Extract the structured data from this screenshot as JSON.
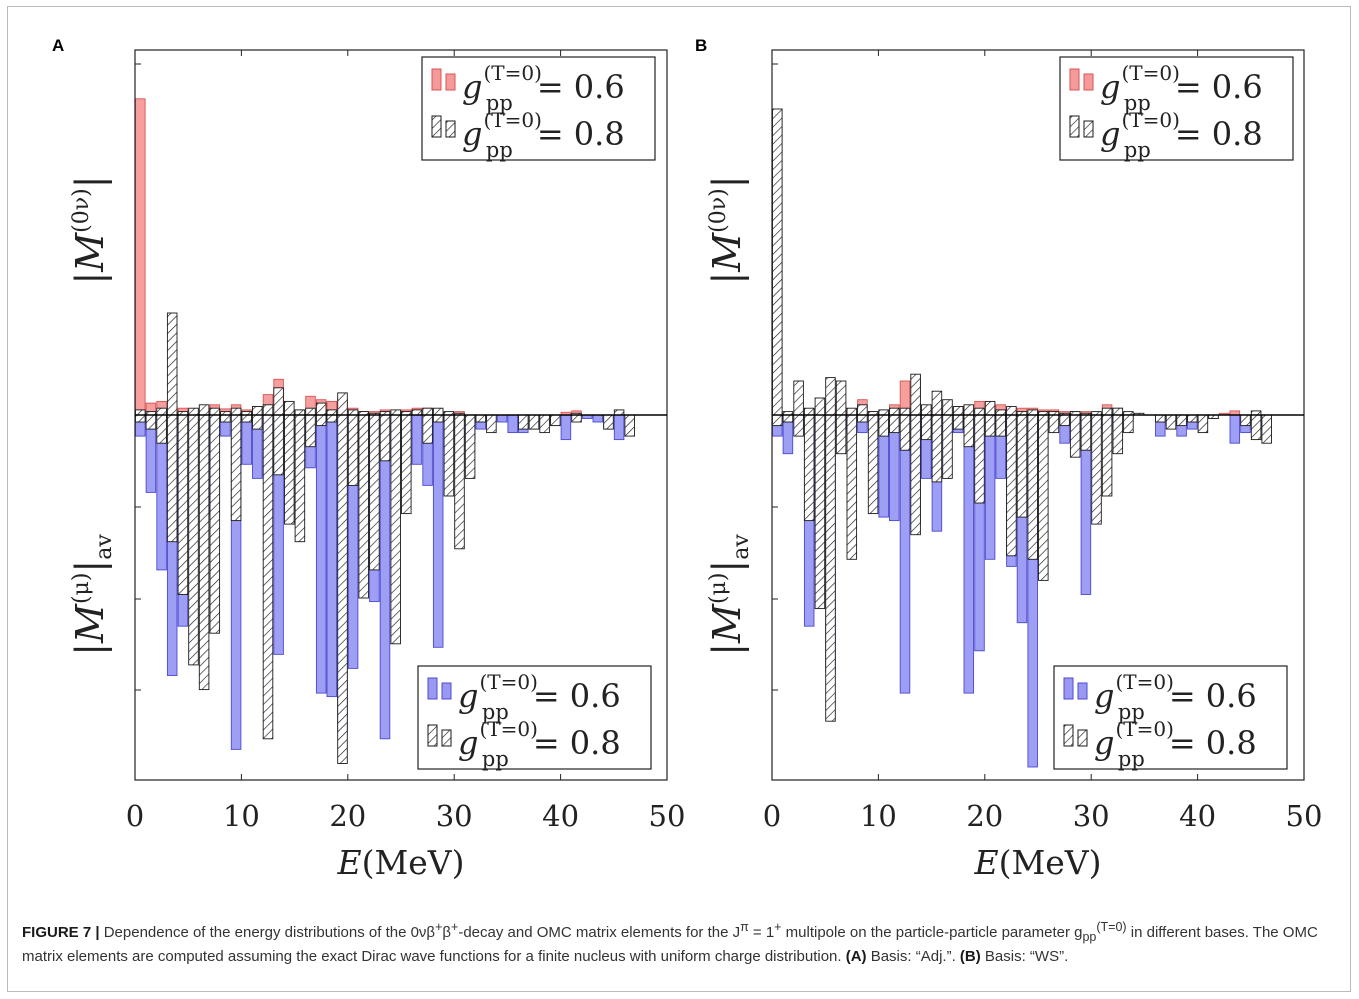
{
  "colors": {
    "red_fill": "#f49a9a",
    "red_edge": "#d95454",
    "blue_fill": "#9999f4",
    "blue_edge": "#4b4bd1",
    "hatch_edge": "#1a1a1a"
  },
  "axis": {
    "xlabel": "E(MeV)",
    "xticks": [
      "0",
      "10",
      "20",
      "30",
      "40",
      "50"
    ],
    "xlim": [
      0,
      50
    ],
    "ylabel_top": "|M(0ν)|",
    "ylabel_bottom": "|M(μ)|av"
  },
  "legend_top": [
    {
      "sym": "g",
      "sup": "(T=0)",
      "sub": "pp",
      "value": "= 0.6",
      "style": "red"
    },
    {
      "sym": "g",
      "sup": "(T=0)",
      "sub": "pp",
      "value": "= 0.8",
      "style": "hatch"
    }
  ],
  "legend_bottom": [
    {
      "sym": "g",
      "sup": "(T=0)",
      "sub": "pp",
      "value": "= 0.6",
      "style": "blue"
    },
    {
      "sym": "g",
      "sup": "(T=0)",
      "sub": "pp",
      "value": "= 0.8",
      "style": "hatch"
    }
  ],
  "chart_data": [
    {
      "type": "bar",
      "panel": "A",
      "xlabel": "E(MeV)",
      "bin_width_mev": 1.0,
      "xlim": [
        0,
        50
      ],
      "top": {
        "ylabel": "|M(0ν)|",
        "ylim": [
          0,
          1.0
        ],
        "series": [
          {
            "name": "g_pp^(T=0) = 0.6",
            "x": [
              0.5,
              1.5,
              2.5,
              3.5,
              4.5,
              5.5,
              6.5,
              7.5,
              8.5,
              9.5,
              10.5,
              11.5,
              12.5,
              13.5,
              14.5,
              15.5,
              16.5,
              17.5,
              18.5,
              19.5,
              20.5,
              21.5,
              22.5,
              23.5,
              24.5,
              25.5,
              26.5,
              27.5,
              28.5,
              29.5,
              30.5,
              31.5,
              32.5,
              33.5,
              34.5,
              35.5,
              36.5,
              37.5,
              38.5,
              39.5,
              40.5,
              41.5,
              42.5,
              43.5,
              44.5,
              45.5,
              46.5
            ],
            "values": [
              0.93,
              0.035,
              0.04,
              0.025,
              0.02,
              0.015,
              0.025,
              0.03,
              0.018,
              0.03,
              0.015,
              0.025,
              0.06,
              0.105,
              0.02,
              0.015,
              0.055,
              0.045,
              0.04,
              0.05,
              0.02,
              0.01,
              0.01,
              0.015,
              0.01,
              0.015,
              0.02,
              0.02,
              0.01,
              0.005,
              0.01,
              0.0,
              0.0,
              0.0,
              0.0,
              0.0,
              0.0,
              0.0,
              0.0,
              0.0,
              0.008,
              0.012,
              0.0,
              0.0,
              0.0,
              0.0,
              0.0
            ]
          },
          {
            "name": "g_pp^(T=0) = 0.8",
            "x": [
              0.5,
              1.5,
              2.5,
              3.5,
              4.5,
              5.5,
              6.5,
              7.5,
              8.5,
              9.5,
              10.5,
              11.5,
              12.5,
              13.5,
              14.5,
              15.5,
              16.5,
              17.5,
              18.5,
              19.5,
              20.5,
              21.5,
              22.5,
              23.5,
              24.5,
              25.5,
              26.5,
              27.5,
              28.5,
              29.5,
              30.5,
              31.5,
              32.5,
              33.5,
              34.5,
              35.5,
              36.5,
              37.5,
              38.5,
              39.5,
              40.5,
              41.5,
              42.5,
              43.5,
              44.5,
              45.5,
              46.5
            ],
            "values": [
              0.015,
              0.01,
              0.02,
              0.3,
              0.01,
              0.02,
              0.03,
              0.02,
              0.01,
              0.02,
              0.01,
              0.025,
              0.03,
              0.08,
              0.04,
              0.015,
              0.02,
              0.035,
              0.015,
              0.065,
              0.015,
              0.01,
              0.005,
              0.01,
              0.015,
              0.01,
              0.015,
              0.02,
              0.02,
              0.01,
              0.005,
              0.0,
              0.0,
              0.0,
              0.0,
              0.0,
              0.0,
              0.0,
              0.0,
              0.0,
              0.0,
              0.005,
              0.0,
              0.0,
              0.0,
              0.015,
              0.0
            ]
          }
        ]
      },
      "bottom": {
        "ylabel": "|M(μ)|av",
        "ylim": [
          0,
          1.0
        ],
        "series": [
          {
            "name": "g_pp^(T=0) = 0.6",
            "x": [
              0.5,
              1.5,
              2.5,
              3.5,
              4.5,
              5.5,
              6.5,
              7.5,
              8.5,
              9.5,
              10.5,
              11.5,
              12.5,
              13.5,
              14.5,
              15.5,
              16.5,
              17.5,
              18.5,
              19.5,
              20.5,
              21.5,
              22.5,
              23.5,
              24.5,
              25.5,
              26.5,
              27.5,
              28.5,
              29.5,
              30.5,
              31.5,
              32.5,
              33.5,
              34.5,
              35.5,
              36.5,
              37.5,
              38.5,
              39.5,
              40.5,
              41.5,
              42.5,
              43.5,
              44.5,
              45.5,
              46.5
            ],
            "values": [
              0.06,
              0.22,
              0.44,
              0.74,
              0.6,
              0.04,
              0.28,
              0.29,
              0.06,
              0.95,
              0.14,
              0.18,
              0.18,
              0.68,
              0.16,
              0.07,
              0.15,
              0.79,
              0.8,
              0.9,
              0.72,
              0.43,
              0.53,
              0.92,
              0.18,
              0.16,
              0.14,
              0.2,
              0.66,
              0.1,
              0.16,
              0.07,
              0.04,
              0.02,
              0.02,
              0.05,
              0.05,
              0.04,
              0.02,
              0.03,
              0.07,
              0.0,
              0.01,
              0.02,
              0.04,
              0.07,
              0.0
            ]
          },
          {
            "name": "g_pp^(T=0) = 0.8",
            "x": [
              0.5,
              1.5,
              2.5,
              3.5,
              4.5,
              5.5,
              6.5,
              7.5,
              8.5,
              9.5,
              10.5,
              11.5,
              12.5,
              13.5,
              14.5,
              15.5,
              16.5,
              17.5,
              18.5,
              19.5,
              20.5,
              21.5,
              22.5,
              23.5,
              24.5,
              25.5,
              26.5,
              27.5,
              28.5,
              29.5,
              30.5,
              31.5,
              32.5,
              33.5,
              34.5,
              35.5,
              36.5,
              37.5,
              38.5,
              39.5,
              40.5,
              41.5,
              42.5,
              43.5,
              44.5,
              45.5,
              46.5
            ],
            "values": [
              0.02,
              0.04,
              0.08,
              0.36,
              0.51,
              0.71,
              0.78,
              0.62,
              0.02,
              0.3,
              0.02,
              0.04,
              0.92,
              0.17,
              0.31,
              0.36,
              0.09,
              0.03,
              0.02,
              0.99,
              0.2,
              0.52,
              0.44,
              0.13,
              0.65,
              0.28,
              0.0,
              0.08,
              0.02,
              0.23,
              0.38,
              0.18,
              0.02,
              0.05,
              0.0,
              0.0,
              0.04,
              0.04,
              0.05,
              0.03,
              0.0,
              0.02,
              0.0,
              0.0,
              0.04,
              0.0,
              0.06
            ]
          }
        ]
      }
    },
    {
      "type": "bar",
      "panel": "B",
      "xlabel": "E(MeV)",
      "bin_width_mev": 1.0,
      "xlim": [
        0,
        50
      ],
      "top": {
        "ylabel": "|M(0ν)|",
        "ylim": [
          0,
          1.0
        ],
        "series": [
          {
            "name": "g_pp^(T=0) = 0.6",
            "x": [
              0.5,
              1.5,
              2.5,
              3.5,
              4.5,
              5.5,
              6.5,
              7.5,
              8.5,
              9.5,
              10.5,
              11.5,
              12.5,
              13.5,
              14.5,
              15.5,
              16.5,
              17.5,
              18.5,
              19.5,
              20.5,
              21.5,
              22.5,
              23.5,
              24.5,
              25.5,
              26.5,
              27.5,
              28.5,
              29.5,
              30.5,
              31.5,
              32.5,
              33.5,
              34.5,
              35.5,
              36.5,
              37.5,
              38.5,
              39.5,
              40.5,
              41.5,
              42.5,
              43.5,
              44.5,
              45.5,
              46.5
            ],
            "values": [
              0.87,
              0.005,
              0.0,
              0.01,
              0.02,
              0.045,
              0.03,
              0.015,
              0.045,
              0.01,
              0.015,
              0.03,
              0.1,
              0.11,
              0.025,
              0.03,
              0.02,
              0.025,
              0.02,
              0.04,
              0.035,
              0.03,
              0.02,
              0.02,
              0.02,
              0.015,
              0.015,
              0.01,
              0.01,
              0.01,
              0.005,
              0.03,
              0.02,
              0.0,
              0.0,
              0.0,
              0.0,
              0.0,
              0.0,
              0.0,
              0.0,
              0.0,
              0.005,
              0.012,
              0.0,
              0.0,
              0.0
            ]
          },
          {
            "name": "g_pp^(T=0) = 0.8",
            "x": [
              0.5,
              1.5,
              2.5,
              3.5,
              4.5,
              5.5,
              6.5,
              7.5,
              8.5,
              9.5,
              10.5,
              11.5,
              12.5,
              13.5,
              14.5,
              15.5,
              16.5,
              17.5,
              18.5,
              19.5,
              20.5,
              21.5,
              22.5,
              23.5,
              24.5,
              25.5,
              26.5,
              27.5,
              28.5,
              29.5,
              30.5,
              31.5,
              32.5,
              33.5,
              34.5,
              35.5,
              36.5,
              37.5,
              38.5,
              39.5,
              40.5,
              41.5,
              42.5,
              43.5,
              44.5,
              45.5,
              46.5
            ],
            "values": [
              0.9,
              0.01,
              0.1,
              0.02,
              0.05,
              0.11,
              0.1,
              0.02,
              0.03,
              0.01,
              0.015,
              0.02,
              0.02,
              0.12,
              0.03,
              0.07,
              0.045,
              0.025,
              0.03,
              0.02,
              0.04,
              0.015,
              0.025,
              0.01,
              0.015,
              0.01,
              0.01,
              0.005,
              0.01,
              0.005,
              0.01,
              0.02,
              0.02,
              0.01,
              0.005,
              0.0,
              0.0,
              0.0,
              0.0,
              0.0,
              0.0,
              0.0,
              0.0,
              0.0,
              0.0,
              0.012,
              0.0
            ]
          }
        ]
      },
      "bottom": {
        "ylabel": "|M(μ)|av",
        "ylim": [
          0,
          1.0
        ],
        "series": [
          {
            "name": "g_pp^(T=0) = 0.6",
            "x": [
              0.5,
              1.5,
              2.5,
              3.5,
              4.5,
              5.5,
              6.5,
              7.5,
              8.5,
              9.5,
              10.5,
              11.5,
              12.5,
              13.5,
              14.5,
              15.5,
              16.5,
              17.5,
              18.5,
              19.5,
              20.5,
              21.5,
              22.5,
              23.5,
              24.5,
              25.5,
              26.5,
              27.5,
              28.5,
              29.5,
              30.5,
              31.5,
              32.5,
              33.5,
              34.5,
              35.5,
              36.5,
              37.5,
              38.5,
              39.5,
              40.5,
              41.5,
              42.5,
              43.5,
              44.5,
              45.5,
              46.5
            ],
            "values": [
              0.06,
              0.11,
              0.04,
              0.6,
              0.44,
              0.73,
              0.05,
              0.04,
              0.05,
              0.03,
              0.29,
              0.3,
              0.79,
              0.31,
              0.18,
              0.33,
              0.05,
              0.05,
              0.79,
              0.67,
              0.41,
              0.18,
              0.43,
              0.59,
              1.0,
              0.15,
              0.03,
              0.08,
              0.05,
              0.51,
              0.04,
              0.04,
              0.02,
              0.01,
              0.0,
              0.0,
              0.06,
              0.03,
              0.06,
              0.04,
              0.0,
              0.01,
              0.0,
              0.08,
              0.05,
              0.04,
              0.0
            ]
          },
          {
            "name": "g_pp^(T=0) = 0.8",
            "x": [
              0.5,
              1.5,
              2.5,
              3.5,
              4.5,
              5.5,
              6.5,
              7.5,
              8.5,
              9.5,
              10.5,
              11.5,
              12.5,
              13.5,
              14.5,
              15.5,
              16.5,
              17.5,
              18.5,
              19.5,
              20.5,
              21.5,
              22.5,
              23.5,
              24.5,
              25.5,
              26.5,
              27.5,
              28.5,
              29.5,
              30.5,
              31.5,
              32.5,
              33.5,
              34.5,
              35.5,
              36.5,
              37.5,
              38.5,
              39.5,
              40.5,
              41.5,
              42.5,
              43.5,
              44.5,
              45.5,
              46.5
            ],
            "values": [
              0.03,
              0.02,
              0.06,
              0.3,
              0.55,
              0.87,
              0.11,
              0.41,
              0.02,
              0.28,
              0.06,
              0.05,
              0.1,
              0.34,
              0.07,
              0.19,
              0.18,
              0.04,
              0.09,
              0.25,
              0.06,
              0.06,
              0.4,
              0.29,
              0.41,
              0.47,
              0.05,
              0.03,
              0.12,
              0.1,
              0.31,
              0.23,
              0.11,
              0.05,
              0.0,
              0.0,
              0.02,
              0.04,
              0.03,
              0.02,
              0.05,
              0.01,
              0.0,
              0.0,
              0.03,
              0.07,
              0.08
            ]
          }
        ]
      }
    }
  ],
  "panel_labels": [
    "A",
    "B"
  ],
  "caption": {
    "label": "FIGURE 7 |",
    "text_1": " Dependence of the energy distributions of the 0νβ",
    "sup_1": "+",
    "text_2": "β",
    "sup_2": "+",
    "text_3": "-decay and OMC matrix elements for the J",
    "sup_3": "π",
    "text_4": " = 1",
    "sup_4": "+",
    "text_5": " multipole on the particle-particle parameter g",
    "sub_5": "pp",
    "sup_5": "(T=0)",
    "text_6": " in different bases. The OMC matrix elements are computed assuming the exact Dirac wave functions for a finite nucleus with uniform charge distribution. ",
    "bold_a": "(A)",
    "text_a": " Basis: “Adj.”. ",
    "bold_b": "(B)",
    "text_b": " Basis: “WS”."
  }
}
